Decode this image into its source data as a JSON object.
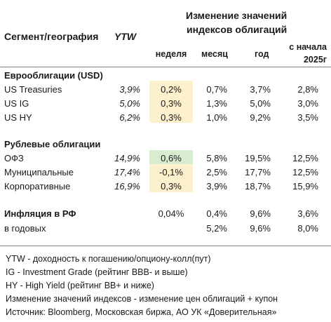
{
  "header": {
    "segment_label": "Сегмент/география",
    "ytw_label": "YTW",
    "change_title_1": "Изменение значений",
    "change_title_2": "индексов облигаций",
    "columns": {
      "week": "неделя",
      "month": "месяц",
      "year": "год",
      "ytd_1": "с начала",
      "ytd_2": "2025г"
    }
  },
  "sections": [
    {
      "title": "Еврооблигации (USD)",
      "rows": [
        {
          "name": "US Treasuries",
          "ytw": "3,9%",
          "week": "0,2%",
          "month": "0,7%",
          "year": "3,7%",
          "ytd": "2,8%"
        },
        {
          "name": "US IG",
          "ytw": "5,0%",
          "week": "0,3%",
          "month": "1,3%",
          "year": "5,0%",
          "ytd": "3,0%"
        },
        {
          "name": "US HY",
          "ytw": "6,2%",
          "week": "0,3%",
          "month": "1,0%",
          "year": "9,2%",
          "ytd": "3,5%"
        }
      ]
    },
    {
      "title": "Рублевые облигации",
      "rows": [
        {
          "name": "ОФЗ",
          "ytw": "14,9%",
          "week": "0,6%",
          "month": "5,8%",
          "year": "19,5%",
          "ytd": "12,5%"
        },
        {
          "name": "Муниципальные",
          "ytw": "17,4%",
          "week": "-0,1%",
          "month": "2,5%",
          "year": "17,7%",
          "ytd": "12,5%"
        },
        {
          "name": "Корпоративные",
          "ytw": "16,9%",
          "week": "0,3%",
          "month": "3,9%",
          "year": "18,7%",
          "ytd": "15,9%"
        }
      ]
    }
  ],
  "inflation": {
    "label": "Инфляция в РФ",
    "week": "0,04%",
    "month": "0,4%",
    "year": "9,6%",
    "ytd": "3,6%",
    "annual_label": "в годовых",
    "annual_month": "5,2%",
    "annual_year": "9,6%",
    "annual_ytd": "8,0%"
  },
  "notes": [
    "YTW - доходность к погашению/опциону-колл(пут)",
    "IG - Investment Grade (рейтинг BBB- и выше)",
    "HY - High Yield (рейтинг BB+ и ниже)",
    "Изменение значений индексов - изменение цен облигаций + купон",
    "Источник: Bloomberg, Московская биржа, АО УК «Доверительная»"
  ],
  "colors": {
    "highlight_yellow": "#fdf0cc",
    "highlight_green": "#d8ecd0",
    "rule": "#7f7f7f"
  }
}
